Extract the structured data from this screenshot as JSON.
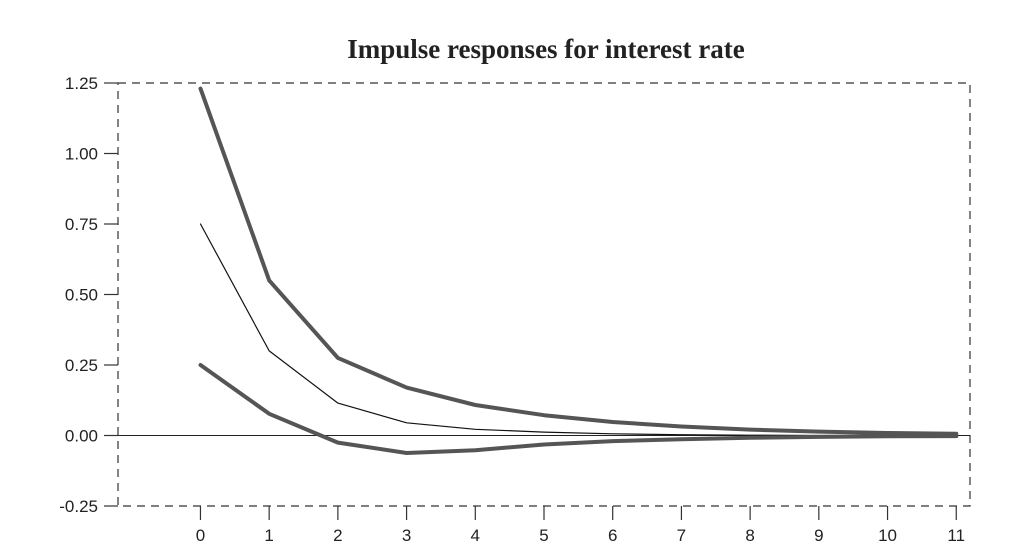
{
  "chart_data": {
    "type": "line",
    "title": "Impulse responses for interest rate",
    "xlabel": "",
    "ylabel": "",
    "x": [
      0,
      1,
      2,
      3,
      4,
      5,
      6,
      7,
      8,
      9,
      10,
      11
    ],
    "x_ticks": [
      "0",
      "1",
      "2",
      "3",
      "4",
      "5",
      "6",
      "7",
      "8",
      "9",
      "10",
      "11"
    ],
    "y_ticks": [
      "1.25",
      "1.00",
      "0.75",
      "0.50",
      "0.25",
      "0.00",
      "-0.25"
    ],
    "y_tick_values": [
      1.25,
      1.0,
      0.75,
      0.5,
      0.25,
      0.0,
      -0.25
    ],
    "ylim": [
      -0.25,
      1.25
    ],
    "xlim": [
      -1.2,
      11.2
    ],
    "zero_line": true,
    "series": [
      {
        "role": "upper band",
        "color": "#555555",
        "weight": "thick",
        "values": [
          1.23,
          0.55,
          0.275,
          0.17,
          0.108,
          0.072,
          0.048,
          0.032,
          0.021,
          0.014,
          0.009,
          0.006
        ]
      },
      {
        "role": "point estimate",
        "color": "#111111",
        "weight": "thin",
        "values": [
          0.75,
          0.3,
          0.115,
          0.045,
          0.022,
          0.012,
          0.006,
          0.003,
          0.001,
          0.0,
          0.0,
          0.0
        ]
      },
      {
        "role": "lower band",
        "color": "#555555",
        "weight": "thick",
        "values": [
          0.25,
          0.077,
          -0.025,
          -0.062,
          -0.052,
          -0.032,
          -0.02,
          -0.013,
          -0.008,
          -0.005,
          -0.003,
          -0.002
        ]
      }
    ]
  }
}
